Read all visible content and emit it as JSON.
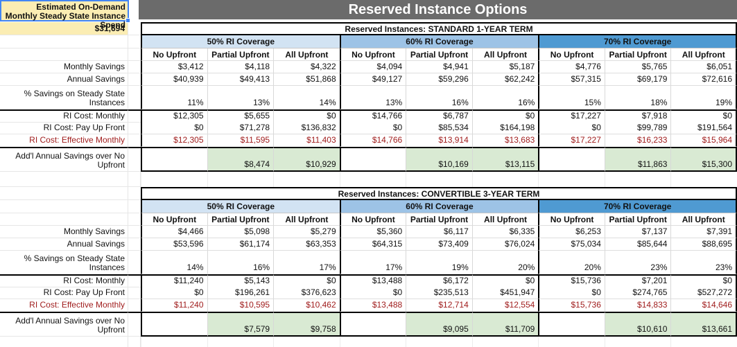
{
  "app": {
    "title": "Reserved Instance Options"
  },
  "left_panel": {
    "spend_label": "Estimated On-Demand Monthly Steady State Instance Spend",
    "spend_value": "$31,694"
  },
  "coverage_headers": [
    "50% RI Coverage",
    "60% RI Coverage",
    "70% RI Coverage"
  ],
  "upfront_headers": [
    "No Upfront",
    "Partial Upfront",
    "All Upfront"
  ],
  "row_labels": {
    "monthly_savings": "Monthly Savings",
    "annual_savings": "Annual Savings",
    "pct_savings": "% Savings on Steady State Instances",
    "ri_cost_monthly": "RI Cost: Monthly",
    "ri_cost_pay_up_front": "RI Cost: Pay Up Front",
    "ri_cost_effective_monthly": "RI Cost: Effective Monthly",
    "addl_annual_savings": "Add'l Annual Savings over No Upfront"
  },
  "tables": [
    {
      "title": "Reserved Instances: STANDARD 1-YEAR TERM",
      "rows": {
        "monthly_savings": [
          "$3,412",
          "$4,118",
          "$4,322",
          "$4,094",
          "$4,941",
          "$5,187",
          "$4,776",
          "$5,765",
          "$6,051"
        ],
        "annual_savings": [
          "$40,939",
          "$49,413",
          "$51,868",
          "$49,127",
          "$59,296",
          "$62,242",
          "$57,315",
          "$69,179",
          "$72,616"
        ],
        "pct_savings": [
          "11%",
          "13%",
          "14%",
          "13%",
          "16%",
          "16%",
          "15%",
          "18%",
          "19%"
        ],
        "ri_cost_monthly": [
          "$12,305",
          "$5,655",
          "$0",
          "$14,766",
          "$6,787",
          "$0",
          "$17,227",
          "$7,918",
          "$0"
        ],
        "ri_cost_pay_up_front": [
          "$0",
          "$71,278",
          "$136,832",
          "$0",
          "$85,534",
          "$164,198",
          "$0",
          "$99,789",
          "$191,564"
        ],
        "ri_cost_effective_monthly": [
          "$12,305",
          "$11,595",
          "$11,403",
          "$14,766",
          "$13,914",
          "$13,683",
          "$17,227",
          "$16,233",
          "$15,964"
        ],
        "addl_annual_savings": [
          "",
          "$8,474",
          "$10,929",
          "",
          "$10,169",
          "$13,115",
          "",
          "$11,863",
          "$15,300"
        ]
      }
    },
    {
      "title": "Reserved Instances: CONVERTIBLE 3-YEAR TERM",
      "rows": {
        "monthly_savings": [
          "$4,466",
          "$5,098",
          "$5,279",
          "$5,360",
          "$6,117",
          "$6,335",
          "$6,253",
          "$7,137",
          "$7,391"
        ],
        "annual_savings": [
          "$53,596",
          "$61,174",
          "$63,353",
          "$64,315",
          "$73,409",
          "$76,024",
          "$75,034",
          "$85,644",
          "$88,695"
        ],
        "pct_savings": [
          "14%",
          "16%",
          "17%",
          "17%",
          "19%",
          "20%",
          "20%",
          "23%",
          "23%"
        ],
        "ri_cost_monthly": [
          "$11,240",
          "$5,143",
          "$0",
          "$13,488",
          "$6,172",
          "$0",
          "$15,736",
          "$7,201",
          "$0"
        ],
        "ri_cost_pay_up_front": [
          "$0",
          "$196,261",
          "$376,623",
          "$0",
          "$235,513",
          "$451,947",
          "$0",
          "$274,765",
          "$527,272"
        ],
        "ri_cost_effective_monthly": [
          "$11,240",
          "$10,595",
          "$10,462",
          "$13,488",
          "$12,714",
          "$12,554",
          "$15,736",
          "$14,833",
          "$14,646"
        ],
        "addl_annual_savings": [
          "",
          "$7,579",
          "$9,758",
          "",
          "$9,095",
          "$11,709",
          "",
          "$10,610",
          "$13,661"
        ]
      }
    }
  ],
  "colors": {
    "header_bar": "#6b6b6b",
    "highlight_yellow": "#fbedb3",
    "coverage_50": "#d2e3f3",
    "coverage_60": "#9dc3e6",
    "coverage_70": "#4f9ad2",
    "savings_green": "#d9ead3",
    "negative_red": "#a01d1d",
    "selection_blue": "#4285f4"
  }
}
